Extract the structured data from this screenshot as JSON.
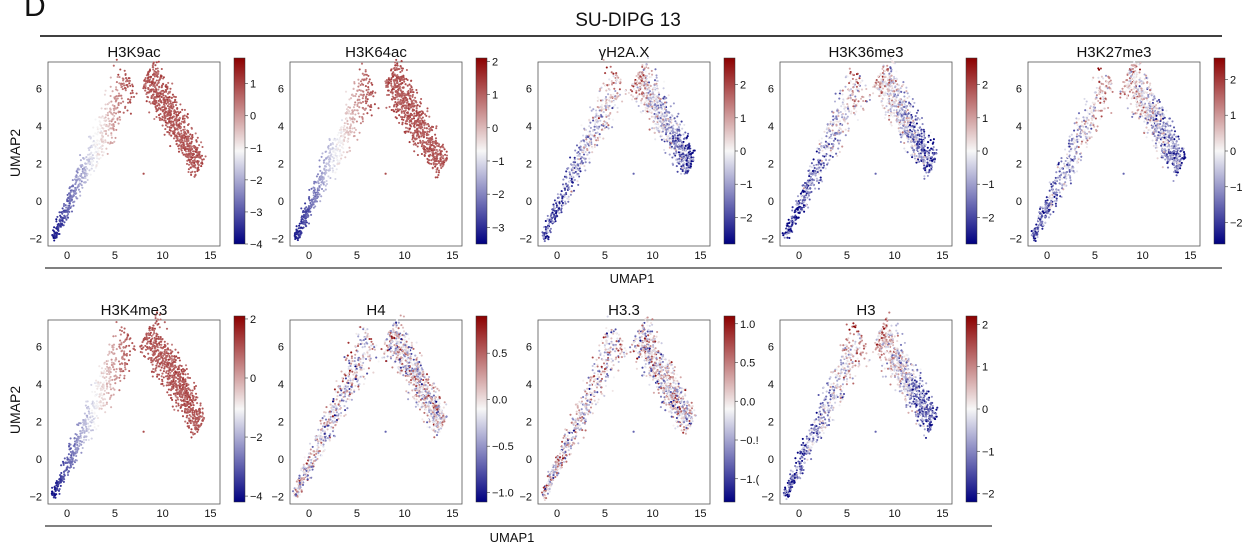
{
  "figure": {
    "panel_letter": "D",
    "title": "SU-DIPG 13",
    "row_xlabel": "UMAP1",
    "row_ylabel": "UMAP2"
  },
  "colors": {
    "cmap_low": "#000080",
    "cmap_mid": "#f7f7f7",
    "cmap_high": "#8b0000",
    "frame": "#555555"
  },
  "chart_data": [
    {
      "type": "scatter",
      "title": "H3K9ac",
      "xlim": [
        -2,
        16
      ],
      "ylim": [
        -2.4,
        7.4
      ],
      "xticks": [
        0,
        5,
        10,
        15
      ],
      "yticks": [
        -2,
        0,
        2,
        4,
        6
      ],
      "colorbar": {
        "range": [
          -4,
          1.8
        ],
        "ticks": [
          -4,
          -3,
          -2,
          -1,
          0,
          1
        ]
      },
      "pattern": "gradient",
      "bias": 0.0
    },
    {
      "type": "scatter",
      "title": "H3K64ac",
      "xlim": [
        -2,
        16
      ],
      "ylim": [
        -2.4,
        7.4
      ],
      "xticks": [
        0,
        5,
        10,
        15
      ],
      "yticks": [
        -2,
        0,
        2,
        4,
        6
      ],
      "colorbar": {
        "range": [
          -3.5,
          2.1
        ],
        "ticks": [
          -3,
          -2,
          -1,
          0,
          1,
          2
        ]
      },
      "pattern": "gradient",
      "bias": -0.2
    },
    {
      "type": "scatter",
      "title": "γH2A.X",
      "xlim": [
        -2,
        16
      ],
      "ylim": [
        -2.4,
        7.4
      ],
      "xticks": [
        0,
        5,
        10,
        15
      ],
      "yticks": [
        -2,
        0,
        2,
        4,
        6
      ],
      "colorbar": {
        "range": [
          -2.8,
          2.8
        ],
        "ticks": [
          -2,
          -1,
          0,
          1,
          2
        ]
      },
      "pattern": "mixed",
      "bias": -0.3
    },
    {
      "type": "scatter",
      "title": "H3K36me3",
      "xlim": [
        -2,
        16
      ],
      "ylim": [
        -2.4,
        7.4
      ],
      "xticks": [
        0,
        5,
        10,
        15
      ],
      "yticks": [
        -2,
        0,
        2,
        4,
        6
      ],
      "colorbar": {
        "range": [
          -2.8,
          2.8
        ],
        "ticks": [
          -2,
          -1,
          0,
          1,
          2
        ]
      },
      "pattern": "mixed",
      "bias": -0.6
    },
    {
      "type": "scatter",
      "title": "H3K27me3",
      "xlim": [
        -2,
        16
      ],
      "ylim": [
        -2.4,
        7.4
      ],
      "xticks": [
        0,
        5,
        10,
        15
      ],
      "yticks": [
        -2,
        0,
        2,
        4,
        6
      ],
      "colorbar": {
        "range": [
          -2.6,
          2.6
        ],
        "ticks": [
          -2,
          -1,
          0,
          1,
          2
        ]
      },
      "pattern": "mixed",
      "bias": -0.1
    },
    {
      "type": "scatter",
      "title": "H3K4me3",
      "xlim": [
        -2,
        16
      ],
      "ylim": [
        -2.4,
        7.4
      ],
      "xticks": [
        0,
        5,
        10,
        15
      ],
      "yticks": [
        -2,
        0,
        2,
        4,
        6
      ],
      "colorbar": {
        "range": [
          -4.2,
          2.1
        ],
        "ticks": [
          -4,
          -2,
          0,
          2
        ]
      },
      "pattern": "gradient",
      "bias": 0.1
    },
    {
      "type": "scatter",
      "title": "H4",
      "xlim": [
        -2,
        16
      ],
      "ylim": [
        -2.4,
        7.4
      ],
      "xticks": [
        0,
        5,
        10,
        15
      ],
      "yticks": [
        -2,
        0,
        2,
        4,
        6
      ],
      "colorbar": {
        "range": [
          -1.1,
          0.9
        ],
        "ticks": [
          -1.0,
          -0.5,
          0.0,
          0.5
        ],
        "tick_labels": [
          "−1.0",
          "−0.5",
          "0.0",
          "0.5"
        ]
      },
      "pattern": "noisy",
      "bias": 0.0
    },
    {
      "type": "scatter",
      "title": "H3.3",
      "xlim": [
        -2,
        16
      ],
      "ylim": [
        -2.4,
        7.4
      ],
      "xticks": [
        0,
        5,
        10,
        15
      ],
      "yticks": [
        -2,
        0,
        2,
        4,
        6
      ],
      "colorbar": {
        "range": [
          -1.3,
          1.1
        ],
        "ticks": [
          -1.0,
          -0.5,
          0.0,
          0.5,
          1.0
        ],
        "tick_labels": [
          "−1.(",
          "−0.!",
          "0.0",
          "0.5",
          "1.0"
        ]
      },
      "pattern": "noisy",
      "bias": 0.1
    },
    {
      "type": "scatter",
      "title": "H3",
      "xlim": [
        -2,
        16
      ],
      "ylim": [
        -2.4,
        7.4
      ],
      "xticks": [
        0,
        5,
        10,
        15
      ],
      "yticks": [
        -2,
        0,
        2,
        4,
        6
      ],
      "colorbar": {
        "range": [
          -2.2,
          2.2
        ],
        "ticks": [
          -2,
          -1,
          0,
          1,
          2
        ]
      },
      "pattern": "mixed",
      "bias": -0.2
    }
  ]
}
